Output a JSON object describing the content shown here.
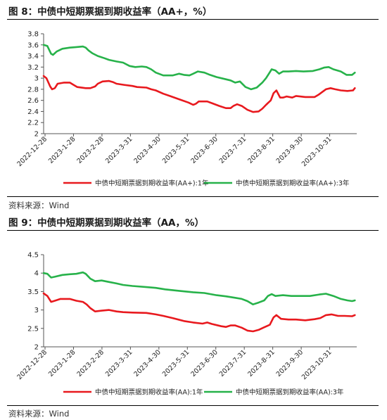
{
  "figures": [
    {
      "title": "图 8：中债中短期票据到期收益率（AA+，%）",
      "source": "资料来源：Wind",
      "colors": {
        "series1": "#e8191e",
        "series2": "#27b24a"
      },
      "chart_data": {
        "type": "line",
        "title": "",
        "xlabel": "",
        "ylabel": "",
        "x_ticks": [
          "2022-12-28",
          "2023-1-28",
          "2023-2-28",
          "2023-3-31",
          "2023-4-30",
          "2023-5-31",
          "2023-6-30",
          "2023-7-31",
          "2023-8-31",
          "2023-9-30",
          "2023-10-31"
        ],
        "y_ticks": [
          "2",
          "2.2",
          "2.4",
          "2.6",
          "2.8",
          "3",
          "3.2",
          "3.4",
          "3.6",
          "3.8"
        ],
        "ylim": [
          2,
          3.8
        ],
        "x_range": [
          0,
          335
        ],
        "grid": false,
        "legend_position": "bottom",
        "series": [
          {
            "name": "中债中短期票据到期收益率(AA+):1年",
            "color": "#e8191e",
            "points": [
              [
                0,
                3.04
              ],
              [
                3,
                3.0
              ],
              [
                7,
                2.85
              ],
              [
                9,
                2.8
              ],
              [
                12,
                2.82
              ],
              [
                15,
                2.9
              ],
              [
                22,
                2.92
              ],
              [
                28,
                2.92
              ],
              [
                32,
                2.88
              ],
              [
                36,
                2.84
              ],
              [
                45,
                2.82
              ],
              [
                50,
                2.82
              ],
              [
                55,
                2.85
              ],
              [
                58,
                2.9
              ],
              [
                63,
                2.94
              ],
              [
                70,
                2.95
              ],
              [
                74,
                2.93
              ],
              [
                78,
                2.9
              ],
              [
                86,
                2.88
              ],
              [
                95,
                2.86
              ],
              [
                100,
                2.84
              ],
              [
                110,
                2.83
              ],
              [
                115,
                2.8
              ],
              [
                120,
                2.78
              ],
              [
                128,
                2.72
              ],
              [
                135,
                2.68
              ],
              [
                145,
                2.62
              ],
              [
                155,
                2.56
              ],
              [
                160,
                2.52
              ],
              [
                163,
                2.54
              ],
              [
                166,
                2.58
              ],
              [
                175,
                2.58
              ],
              [
                180,
                2.55
              ],
              [
                188,
                2.5
              ],
              [
                195,
                2.46
              ],
              [
                200,
                2.46
              ],
              [
                203,
                2.5
              ],
              [
                207,
                2.53
              ],
              [
                212,
                2.5
              ],
              [
                218,
                2.43
              ],
              [
                224,
                2.39
              ],
              [
                230,
                2.4
              ],
              [
                234,
                2.45
              ],
              [
                238,
                2.52
              ],
              [
                243,
                2.6
              ],
              [
                246,
                2.73
              ],
              [
                249,
                2.78
              ],
              [
                253,
                2.65
              ],
              [
                256,
                2.65
              ],
              [
                260,
                2.67
              ],
              [
                266,
                2.65
              ],
              [
                270,
                2.68
              ],
              [
                280,
                2.66
              ],
              [
                290,
                2.66
              ],
              [
                294,
                2.7
              ],
              [
                298,
                2.75
              ],
              [
                302,
                2.8
              ],
              [
                307,
                2.82
              ],
              [
                312,
                2.8
              ],
              [
                318,
                2.78
              ],
              [
                325,
                2.77
              ],
              [
                331,
                2.78
              ],
              [
                333,
                2.82
              ]
            ]
          },
          {
            "name": "中债中短期票据到期收益率(AA+):3年",
            "color": "#27b24a",
            "points": [
              [
                0,
                3.6
              ],
              [
                4,
                3.58
              ],
              [
                8,
                3.44
              ],
              [
                10,
                3.42
              ],
              [
                14,
                3.48
              ],
              [
                20,
                3.53
              ],
              [
                28,
                3.55
              ],
              [
                35,
                3.56
              ],
              [
                42,
                3.57
              ],
              [
                45,
                3.55
              ],
              [
                48,
                3.5
              ],
              [
                52,
                3.45
              ],
              [
                58,
                3.4
              ],
              [
                65,
                3.36
              ],
              [
                70,
                3.33
              ],
              [
                78,
                3.3
              ],
              [
                85,
                3.28
              ],
              [
                92,
                3.22
              ],
              [
                98,
                3.2
              ],
              [
                105,
                3.21
              ],
              [
                110,
                3.2
              ],
              [
                115,
                3.16
              ],
              [
                120,
                3.1
              ],
              [
                128,
                3.05
              ],
              [
                138,
                3.05
              ],
              [
                145,
                3.08
              ],
              [
                150,
                3.06
              ],
              [
                156,
                3.05
              ],
              [
                160,
                3.08
              ],
              [
                165,
                3.12
              ],
              [
                172,
                3.1
              ],
              [
                178,
                3.06
              ],
              [
                185,
                3.02
              ],
              [
                195,
                2.98
              ],
              [
                200,
                2.96
              ],
              [
                205,
                2.92
              ],
              [
                210,
                2.94
              ],
              [
                216,
                2.84
              ],
              [
                222,
                2.8
              ],
              [
                228,
                2.83
              ],
              [
                234,
                2.92
              ],
              [
                238,
                3.0
              ],
              [
                241,
                3.08
              ],
              [
                244,
                3.16
              ],
              [
                248,
                3.14
              ],
              [
                252,
                3.08
              ],
              [
                256,
                3.12
              ],
              [
                262,
                3.12
              ],
              [
                270,
                3.13
              ],
              [
                278,
                3.12
              ],
              [
                288,
                3.13
              ],
              [
                295,
                3.16
              ],
              [
                300,
                3.19
              ],
              [
                305,
                3.2
              ],
              [
                310,
                3.16
              ],
              [
                318,
                3.12
              ],
              [
                324,
                3.06
              ],
              [
                330,
                3.06
              ],
              [
                333,
                3.1
              ]
            ]
          }
        ]
      }
    },
    {
      "title": "图 9：中债中短期票据到期收益率（AA，%）",
      "source": "资料来源：Wind",
      "colors": {
        "series1": "#e8191e",
        "series2": "#27b24a"
      },
      "chart_data": {
        "type": "line",
        "title": "",
        "xlabel": "",
        "ylabel": "",
        "x_ticks": [
          "2022-12-28",
          "2023-1-28",
          "2023-2-28",
          "2023-3-31",
          "2023-4-30",
          "2023-5-31",
          "2023-6-30",
          "2023-7-31",
          "2023-8-31",
          "2023-9-30",
          "2023-10-31"
        ],
        "y_ticks": [
          "2",
          "2.5",
          "3",
          "3.5",
          "4",
          "4.5"
        ],
        "ylim": [
          2,
          4.5
        ],
        "x_range": [
          0,
          335
        ],
        "grid": false,
        "legend_position": "bottom",
        "series": [
          {
            "name": "中债中短期票据到期收益率(AA):1年",
            "color": "#e8191e",
            "points": [
              [
                0,
                3.45
              ],
              [
                4,
                3.38
              ],
              [
                8,
                3.22
              ],
              [
                12,
                3.25
              ],
              [
                18,
                3.3
              ],
              [
                28,
                3.3
              ],
              [
                35,
                3.25
              ],
              [
                42,
                3.22
              ],
              [
                46,
                3.15
              ],
              [
                50,
                3.05
              ],
              [
                55,
                2.96
              ],
              [
                62,
                2.98
              ],
              [
                70,
                3.0
              ],
              [
                78,
                2.96
              ],
              [
                85,
                2.94
              ],
              [
                95,
                2.93
              ],
              [
                110,
                2.92
              ],
              [
                120,
                2.88
              ],
              [
                128,
                2.84
              ],
              [
                138,
                2.78
              ],
              [
                150,
                2.7
              ],
              [
                160,
                2.66
              ],
              [
                170,
                2.63
              ],
              [
                175,
                2.66
              ],
              [
                180,
                2.62
              ],
              [
                190,
                2.56
              ],
              [
                195,
                2.54
              ],
              [
                200,
                2.58
              ],
              [
                205,
                2.58
              ],
              [
                212,
                2.52
              ],
              [
                218,
                2.44
              ],
              [
                224,
                2.42
              ],
              [
                230,
                2.46
              ],
              [
                236,
                2.53
              ],
              [
                242,
                2.6
              ],
              [
                246,
                2.8
              ],
              [
                249,
                2.86
              ],
              [
                254,
                2.76
              ],
              [
                262,
                2.74
              ],
              [
                270,
                2.74
              ],
              [
                280,
                2.72
              ],
              [
                290,
                2.75
              ],
              [
                296,
                2.78
              ],
              [
                302,
                2.86
              ],
              [
                308,
                2.88
              ],
              [
                315,
                2.84
              ],
              [
                322,
                2.84
              ],
              [
                330,
                2.83
              ],
              [
                333,
                2.86
              ]
            ]
          },
          {
            "name": "中债中短期票据到期收益率(AA):3年",
            "color": "#27b24a",
            "points": [
              [
                0,
                4.0
              ],
              [
                4,
                3.98
              ],
              [
                8,
                3.88
              ],
              [
                12,
                3.9
              ],
              [
                20,
                3.95
              ],
              [
                28,
                3.97
              ],
              [
                35,
                3.98
              ],
              [
                42,
                4.02
              ],
              [
                45,
                3.98
              ],
              [
                50,
                3.85
              ],
              [
                55,
                3.78
              ],
              [
                62,
                3.8
              ],
              [
                70,
                3.76
              ],
              [
                78,
                3.72
              ],
              [
                85,
                3.68
              ],
              [
                95,
                3.65
              ],
              [
                110,
                3.62
              ],
              [
                120,
                3.6
              ],
              [
                130,
                3.56
              ],
              [
                145,
                3.52
              ],
              [
                160,
                3.48
              ],
              [
                172,
                3.46
              ],
              [
                185,
                3.4
              ],
              [
                195,
                3.37
              ],
              [
                205,
                3.33
              ],
              [
                212,
                3.3
              ],
              [
                218,
                3.24
              ],
              [
                224,
                3.15
              ],
              [
                230,
                3.2
              ],
              [
                236,
                3.26
              ],
              [
                240,
                3.38
              ],
              [
                244,
                3.43
              ],
              [
                248,
                3.38
              ],
              [
                256,
                3.4
              ],
              [
                265,
                3.38
              ],
              [
                275,
                3.38
              ],
              [
                285,
                3.38
              ],
              [
                295,
                3.42
              ],
              [
                302,
                3.44
              ],
              [
                310,
                3.38
              ],
              [
                318,
                3.3
              ],
              [
                325,
                3.26
              ],
              [
                330,
                3.24
              ],
              [
                333,
                3.26
              ]
            ]
          }
        ]
      }
    }
  ]
}
